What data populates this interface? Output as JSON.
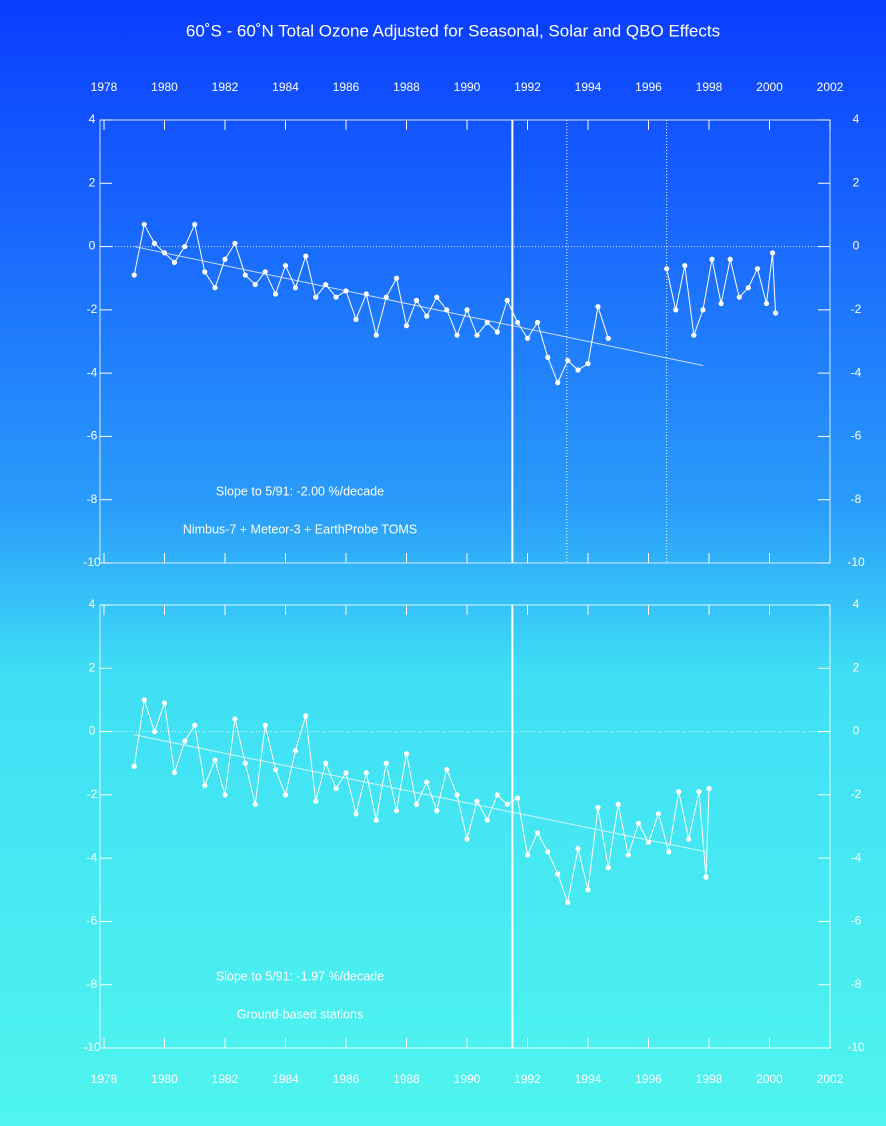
{
  "chart_data": [
    {
      "type": "line",
      "title": "60˚S - 60˚N Total Ozone Adjusted for Seasonal, Solar and QBO Effects",
      "xaxis_position": "top",
      "xlim": [
        1978,
        2002
      ],
      "xticks": [
        1978,
        1980,
        1982,
        1984,
        1986,
        1988,
        1990,
        1992,
        1994,
        1996,
        1998,
        2000,
        2002
      ],
      "ylim": [
        -10,
        4
      ],
      "yticks": [
        4,
        2,
        0,
        -2,
        -4,
        -6,
        -8,
        -10
      ],
      "hlines": [
        0
      ],
      "vlines": [
        1991.5
      ],
      "dotted_vlines": [
        1993.3,
        1996.6
      ],
      "annotations": [
        "Slope to 5/91:  -2.00 %/decade",
        "Nimbus-7 + Meteor-3 + EarthProbe TOMS"
      ],
      "trend": {
        "x": [
          1979,
          1997.8
        ],
        "values": [
          0.0,
          -3.76
        ]
      },
      "series": [
        {
          "color": "#ffffff",
          "x": [
            1979.0,
            1979.33,
            1979.67,
            1980.0,
            1980.33,
            1980.67,
            1981.0,
            1981.33,
            1981.67,
            1982.0,
            1982.33,
            1982.67,
            1983.0,
            1983.33,
            1983.67,
            1984.0,
            1984.33,
            1984.67,
            1985.0,
            1985.33,
            1985.67,
            1986.0,
            1986.33,
            1986.67,
            1987.0,
            1987.33,
            1987.67,
            1988.0,
            1988.33,
            1988.67,
            1989.0,
            1989.33,
            1989.67,
            1990.0,
            1990.33,
            1990.67,
            1991.0,
            1991.33,
            1991.67,
            1992.0,
            1992.33,
            1992.67,
            1993.0,
            1993.33,
            1993.67,
            1994.0,
            1994.33,
            1994.67,
            1995.5,
            1996.6,
            1996.9,
            1997.2,
            1997.5,
            1997.8,
            1998.1,
            1998.4,
            1998.7,
            1999.0,
            1999.3,
            1999.6,
            1999.9,
            2000.1,
            2000.2
          ],
          "values": [
            -0.9,
            0.7,
            0.1,
            -0.2,
            -0.5,
            0.0,
            0.7,
            -0.8,
            -1.3,
            -0.4,
            0.1,
            -0.9,
            -1.2,
            -0.8,
            -1.5,
            -0.6,
            -1.3,
            -0.3,
            -1.6,
            -1.2,
            -1.6,
            -1.4,
            -2.3,
            -1.5,
            -2.8,
            -1.6,
            -1.0,
            -2.5,
            -1.7,
            -2.2,
            -1.6,
            -2.0,
            -2.8,
            -2.0,
            -2.8,
            -2.4,
            -2.7,
            -1.7,
            -2.4,
            -2.9,
            -2.4,
            -3.5,
            -4.3,
            -3.6,
            -3.9,
            -3.7,
            -1.9,
            -2.9,
            null,
            -0.7,
            -2.0,
            -0.6,
            -2.8,
            -2.0,
            -0.4,
            -1.8,
            -0.4,
            -1.6,
            -1.3,
            -0.7,
            -1.8,
            -0.2,
            -2.1
          ]
        }
      ]
    },
    {
      "type": "line",
      "xaxis_position": "bottom",
      "xlim": [
        1978,
        2002
      ],
      "xticks": [
        1978,
        1980,
        1982,
        1984,
        1986,
        1988,
        1990,
        1992,
        1994,
        1996,
        1998,
        2000,
        2002
      ],
      "ylim": [
        -10,
        4
      ],
      "yticks": [
        4,
        2,
        0,
        -2,
        -4,
        -6,
        -8,
        -10
      ],
      "hlines": [
        0
      ],
      "vlines": [
        1991.5
      ],
      "dotted_vlines": [],
      "annotations": [
        "Slope to 5/91:  -1.97 %/decade",
        "Ground-based stations"
      ],
      "trend": {
        "x": [
          1979,
          1997.9
        ],
        "values": [
          -0.1,
          -3.8
        ]
      },
      "series": [
        {
          "color": "#ffffff",
          "x": [
            1979.0,
            1979.33,
            1979.67,
            1980.0,
            1980.33,
            1980.67,
            1981.0,
            1981.33,
            1981.67,
            1982.0,
            1982.33,
            1982.67,
            1983.0,
            1983.33,
            1983.67,
            1984.0,
            1984.33,
            1984.67,
            1985.0,
            1985.33,
            1985.67,
            1986.0,
            1986.33,
            1986.67,
            1987.0,
            1987.33,
            1987.67,
            1988.0,
            1988.33,
            1988.67,
            1989.0,
            1989.33,
            1989.67,
            1990.0,
            1990.33,
            1990.67,
            1991.0,
            1991.33,
            1991.67,
            1992.0,
            1992.33,
            1992.67,
            1993.0,
            1993.33,
            1993.67,
            1994.0,
            1994.33,
            1994.67,
            1995.0,
            1995.33,
            1995.67,
            1996.0,
            1996.33,
            1996.67,
            1997.0,
            1997.33,
            1997.67,
            1997.9,
            1998.0
          ],
          "values": [
            -1.1,
            1.0,
            0.0,
            0.9,
            -1.3,
            -0.3,
            0.2,
            -1.7,
            -0.9,
            -2.0,
            0.4,
            -1.0,
            -2.3,
            0.2,
            -1.2,
            -2.0,
            -0.6,
            0.5,
            -2.2,
            -1.0,
            -1.8,
            -1.3,
            -2.6,
            -1.3,
            -2.8,
            -1.0,
            -2.5,
            -0.7,
            -2.3,
            -1.6,
            -2.5,
            -1.2,
            -2.0,
            -3.4,
            -2.2,
            -2.8,
            -2.0,
            -2.3,
            -2.1,
            -3.9,
            -3.2,
            -3.8,
            -4.5,
            -5.4,
            -3.7,
            -5.0,
            -2.4,
            -4.3,
            -2.3,
            -3.9,
            -2.9,
            -3.5,
            -2.6,
            -3.8,
            -1.9,
            -3.4,
            -1.9,
            -4.6,
            -1.8
          ]
        }
      ]
    }
  ]
}
